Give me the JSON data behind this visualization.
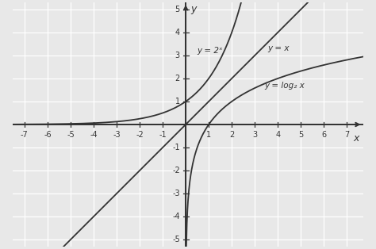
{
  "xlim": [
    -7.5,
    7.7
  ],
  "ylim": [
    -5.3,
    5.3
  ],
  "xticks": [
    -7,
    -6,
    -5,
    -4,
    -3,
    -2,
    -1,
    1,
    2,
    3,
    4,
    5,
    6,
    7
  ],
  "yticks": [
    -5,
    -4,
    -3,
    -2,
    -1,
    1,
    2,
    3,
    4,
    5
  ],
  "xlabel": "x",
  "ylabel": "y",
  "bg_color": "#e8e8e8",
  "line_color": "#333333",
  "grid_color": "#ffffff",
  "label_y2x": "y = x",
  "label_exp": "y = 2ˣ",
  "label_log": "y = log₂ x",
  "label_fontsize": 7.5,
  "tick_fontsize": 7.0,
  "axis_label_fontsize": 9
}
